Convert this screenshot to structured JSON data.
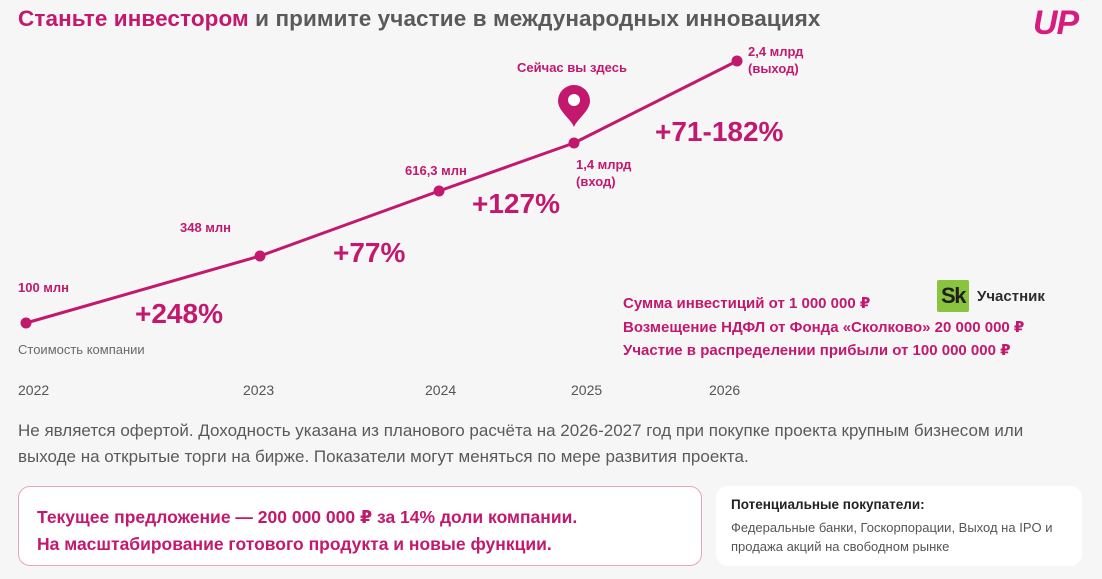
{
  "header": {
    "title_accent": "Станьте инвестором",
    "title_rest": " и примите участие в международных инновациях",
    "logo": "UP"
  },
  "colors": {
    "accent": "#c2186d",
    "logo": "#d81b7e",
    "skolkovo_green": "#8ac43f"
  },
  "chart_data": {
    "type": "line",
    "title": "Стоимость компании",
    "x": [
      "2022",
      "2023",
      "2024",
      "2025",
      "2026"
    ],
    "values": [
      100,
      348,
      616.3,
      1400,
      2400
    ],
    "unit": "млн",
    "value_labels": [
      "100 млн",
      "348 млн",
      "616,3 млн",
      "1,4 млрд\n(вход)",
      "2,4 млрд\n(выход)"
    ],
    "growth_labels": [
      "+248%",
      "+77%",
      "+127%",
      "+71-182%"
    ],
    "marker": {
      "label": "Сейчас вы здесь",
      "index": 3
    },
    "xlabel": "",
    "ylabel": "Стоимость компании"
  },
  "perks": [
    "Сумма инвестиций от 1 000 000 ₽",
    "Возмещение НДФЛ от Фонда «Сколково» 20 000 000 ₽",
    "Участие в распределении прибыли от 100 000 000 ₽"
  ],
  "skolkovo": {
    "logo_text": "Sk",
    "label": "Участник"
  },
  "disclaimer": "Не является офертой. Доходность указана из планового расчёта на 2026-2027 год при покупке проекта крупным бизнесом или выходе на открытые торги на бирже. Показатели могут меняться по мере развития проекта.",
  "offer": {
    "line1": "Текущее предложение — 200 000 000 ₽ за 14% доли компании.",
    "line2": "На масштабирование готового продукта и новые функции."
  },
  "buyers": {
    "title": "Потенциальные покупатели:",
    "text": "Федеральные банки, Госкорпорации, Выход на IPO и продажа акций на свободном рынке"
  }
}
